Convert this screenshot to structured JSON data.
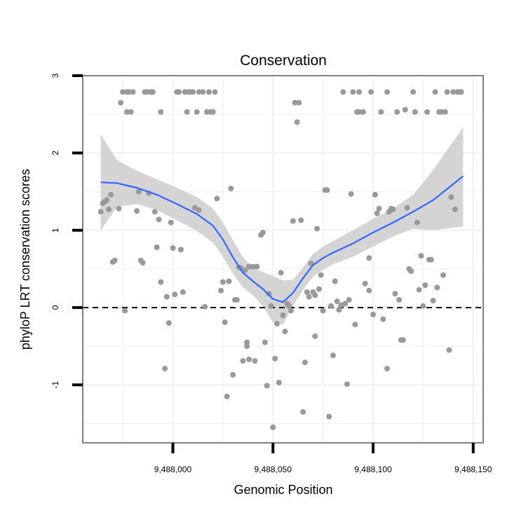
{
  "chart_data": {
    "type": "scatter",
    "title": "Conservation",
    "xlabel": "Genomic Position",
    "ylabel": "phyloP LRT conservation scores",
    "xlim": [
      9487955,
      9488155
    ],
    "ylim": [
      -1.75,
      3.0
    ],
    "x_ticks": [
      9488000,
      9488050,
      9488100,
      9488150
    ],
    "x_tick_labels": [
      "9,488,000",
      "9,488,050",
      "9,488,100",
      "9,488,150"
    ],
    "y_ticks": [
      -1,
      0,
      1,
      2,
      3
    ],
    "y_tick_labels": [
      "-1",
      "0",
      "1",
      "2",
      "3"
    ],
    "grid": true,
    "reference_line": {
      "y": 0,
      "style": "dashed"
    },
    "colors": {
      "points": "#999999",
      "smooth_line": "#3366ff",
      "confidence_band": "#d4d4d4",
      "reference_line": "#000000",
      "panel_border": "#808080",
      "grid": "#f0f0f0"
    },
    "points": [
      [
        9487964,
        1.24
      ],
      [
        9487965,
        1.35
      ],
      [
        9487966,
        1.37
      ],
      [
        9487967,
        1.39
      ],
      [
        9487968,
        1.27
      ],
      [
        9487969,
        1.46
      ],
      [
        9487970,
        0.59
      ],
      [
        9487971,
        0.61
      ],
      [
        9487973,
        1.28
      ],
      [
        9487974,
        2.65
      ],
      [
        9487975,
        2.79
      ],
      [
        9487976,
        -0.04
      ],
      [
        9487977,
        2.79
      ],
      [
        9487977,
        2.53
      ],
      [
        9487978,
        2.79
      ],
      [
        9487979,
        2.53
      ],
      [
        9487980,
        2.79
      ],
      [
        9487982,
        1.25
      ],
      [
        9487983,
        1.5
      ],
      [
        9487984,
        0.61
      ],
      [
        9487985,
        0.58
      ],
      [
        9487986,
        2.79
      ],
      [
        9487987,
        2.79
      ],
      [
        9487988,
        1.48
      ],
      [
        9487989,
        2.79
      ],
      [
        9487990,
        2.79
      ],
      [
        9487991,
        1.24
      ],
      [
        9487992,
        0.78
      ],
      [
        9487993,
        1.14
      ],
      [
        9487994,
        0.33
      ],
      [
        9487994,
        2.53
      ],
      [
        9487996,
        -0.79
      ],
      [
        9487997,
        0.14
      ],
      [
        9487998,
        -0.2
      ],
      [
        9487999,
        1.1
      ],
      [
        9488000,
        0.77
      ],
      [
        9488001,
        0.17
      ],
      [
        9488002,
        2.79
      ],
      [
        9488003,
        2.79
      ],
      [
        9488004,
        0.75
      ],
      [
        9488005,
        0.2
      ],
      [
        9488006,
        2.79
      ],
      [
        9488007,
        2.53
      ],
      [
        9488008,
        2.79
      ],
      [
        9488009,
        2.79
      ],
      [
        9488010,
        2.79
      ],
      [
        9488011,
        1.29
      ],
      [
        9488012,
        2.53
      ],
      [
        9488013,
        2.79
      ],
      [
        9488013,
        1.26
      ],
      [
        9488015,
        2.79
      ],
      [
        9488016,
        0.01
      ],
      [
        9488017,
        2.53
      ],
      [
        9488018,
        2.79
      ],
      [
        9488019,
        2.53
      ],
      [
        9488020,
        2.53
      ],
      [
        9488021,
        2.79
      ],
      [
        9488022,
        1.41
      ],
      [
        9488024,
        0.22
      ],
      [
        9488025,
        0.33
      ],
      [
        9488026,
        -0.19
      ],
      [
        9488027,
        -1.15
      ],
      [
        9488028,
        0.34
      ],
      [
        9488029,
        1.54
      ],
      [
        9488030,
        -0.87
      ],
      [
        9488031,
        0.1
      ],
      [
        9488032,
        0.1
      ],
      [
        9488033,
        0.52
      ],
      [
        9488034,
        0.51
      ],
      [
        9488035,
        -0.69
      ],
      [
        9488036,
        0.48
      ],
      [
        9488037,
        -0.45
      ],
      [
        9488037,
        -0.5
      ],
      [
        9488038,
        -0.67
      ],
      [
        9488038,
        0.53
      ],
      [
        9488040,
        0.53
      ],
      [
        9488041,
        -0.69
      ],
      [
        9488042,
        0.53
      ],
      [
        9488044,
        0.94
      ],
      [
        9488045,
        0.97
      ],
      [
        9488046,
        -0.45
      ],
      [
        9488047,
        -1.01
      ],
      [
        9488048,
        0.18
      ],
      [
        9488049,
        0.02
      ],
      [
        9488050,
        -1.55
      ],
      [
        9488051,
        -0.66
      ],
      [
        9488052,
        -0.21
      ],
      [
        9488053,
        -0.97
      ],
      [
        9488054,
        0.45
      ],
      [
        9488055,
        -0.1
      ],
      [
        9488056,
        -0.31
      ],
      [
        9488057,
        0.05
      ],
      [
        9488058,
        0.02
      ],
      [
        9488059,
        -0.04
      ],
      [
        9488060,
        1.12
      ],
      [
        9488061,
        2.65
      ],
      [
        9488062,
        2.4
      ],
      [
        9488063,
        2.65
      ],
      [
        9488064,
        1.13
      ],
      [
        9488065,
        -1.35
      ],
      [
        9488066,
        -0.71
      ],
      [
        9488067,
        0.2
      ],
      [
        9488068,
        0.14
      ],
      [
        9488069,
        0.57
      ],
      [
        9488070,
        0.2
      ],
      [
        9488071,
        0.16
      ],
      [
        9488071,
        -0.37
      ],
      [
        9488072,
        1.02
      ],
      [
        9488073,
        0.24
      ],
      [
        9488074,
        0.42
      ],
      [
        9488075,
        -0.04
      ],
      [
        9488076,
        1.52
      ],
      [
        9488077,
        1.52
      ],
      [
        9488078,
        -1.41
      ],
      [
        9488079,
        0.02
      ],
      [
        9488080,
        -0.62
      ],
      [
        9488081,
        0.34
      ],
      [
        9488082,
        0.08
      ],
      [
        9488083,
        -0.03
      ],
      [
        9488084,
        0.03
      ],
      [
        9488085,
        2.79
      ],
      [
        9488086,
        0.05
      ],
      [
        9488087,
        -0.99
      ],
      [
        9488088,
        0.1
      ],
      [
        9488089,
        1.47
      ],
      [
        9488090,
        2.79
      ],
      [
        9488091,
        -0.22
      ],
      [
        9488092,
        2.53
      ],
      [
        9488093,
        2.79
      ],
      [
        9488093,
        2.53
      ],
      [
        9488095,
        2.53
      ],
      [
        9488096,
        0.31
      ],
      [
        9488098,
        0.64
      ],
      [
        9488098,
        0.22
      ],
      [
        9488099,
        2.79
      ],
      [
        9488100,
        -0.09
      ],
      [
        9488101,
        1.46
      ],
      [
        9488102,
        1.22
      ],
      [
        9488103,
        1.28
      ],
      [
        9488104,
        2.53
      ],
      [
        9488105,
        -0.15
      ],
      [
        9488107,
        -0.79
      ],
      [
        9488107,
        2.79
      ],
      [
        9488108,
        1.24
      ],
      [
        9488109,
        1.28
      ],
      [
        9488110,
        1.27
      ],
      [
        9488111,
        0.18
      ],
      [
        9488112,
        2.53
      ],
      [
        9488113,
        0.1
      ],
      [
        9488114,
        -0.42
      ],
      [
        9488115,
        -0.42
      ],
      [
        9488116,
        2.56
      ],
      [
        9488117,
        1.29
      ],
      [
        9488118,
        0.5
      ],
      [
        9488119,
        0.47
      ],
      [
        9488120,
        2.79
      ],
      [
        9488121,
        2.53
      ],
      [
        9488122,
        1.1
      ],
      [
        9488123,
        0.23
      ],
      [
        9488124,
        0.67
      ],
      [
        9488125,
        0.02
      ],
      [
        9488126,
        0.29
      ],
      [
        9488127,
        2.53
      ],
      [
        9488128,
        0.62
      ],
      [
        9488129,
        0.62
      ],
      [
        9488130,
        0.09
      ],
      [
        9488131,
        2.79
      ],
      [
        9488132,
        0.26
      ],
      [
        9488133,
        2.53
      ],
      [
        9488134,
        2.53
      ],
      [
        9488135,
        0.42
      ],
      [
        9488136,
        2.53
      ],
      [
        9488137,
        2.79
      ],
      [
        9488138,
        -0.55
      ],
      [
        9488139,
        1.43
      ],
      [
        9488140,
        2.79
      ],
      [
        9488141,
        1.27
      ],
      [
        9488142,
        2.79
      ],
      [
        9488143,
        2.79
      ],
      [
        9488144,
        2.79
      ]
    ],
    "smooth": {
      "x": [
        9487964,
        9487972,
        9487982,
        9487992,
        9488002,
        9488012,
        9488020,
        9488025,
        9488030,
        9488035,
        9488040,
        9488045,
        9488050,
        9488055,
        9488060,
        9488065,
        9488070,
        9488075,
        9488080,
        9488090,
        9488100,
        9488110,
        9488120,
        9488130,
        9488145
      ],
      "y": [
        1.62,
        1.61,
        1.55,
        1.46,
        1.34,
        1.21,
        1.06,
        0.88,
        0.65,
        0.45,
        0.34,
        0.24,
        0.11,
        0.07,
        0.19,
        0.38,
        0.55,
        0.64,
        0.71,
        0.83,
        0.97,
        1.1,
        1.24,
        1.39,
        1.7
      ],
      "lower": [
        1.0,
        1.3,
        1.34,
        1.26,
        1.13,
        0.99,
        0.84,
        0.66,
        0.44,
        0.26,
        0.16,
        0.02,
        -0.19,
        -0.22,
        0.02,
        0.23,
        0.4,
        0.49,
        0.56,
        0.66,
        0.79,
        0.92,
        1.02,
        1.0,
        1.05
      ],
      "upper": [
        2.24,
        1.91,
        1.77,
        1.66,
        1.55,
        1.43,
        1.28,
        1.1,
        0.87,
        0.65,
        0.52,
        0.46,
        0.41,
        0.35,
        0.36,
        0.52,
        0.69,
        0.79,
        0.86,
        1.0,
        1.15,
        1.28,
        1.46,
        1.78,
        2.33
      ]
    }
  }
}
